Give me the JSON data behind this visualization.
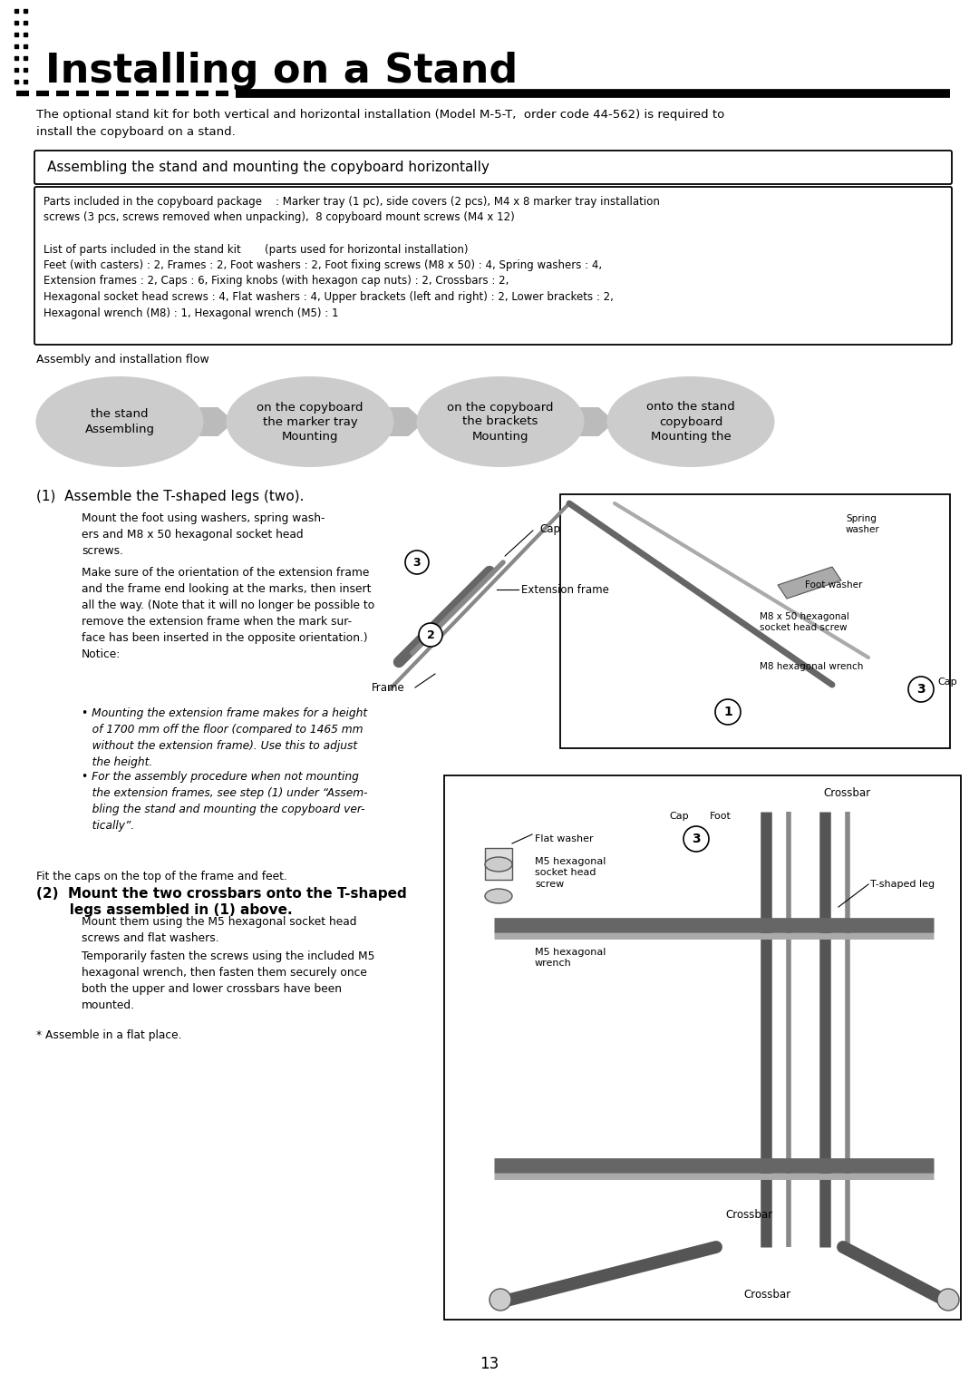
{
  "page_bg": "#ffffff",
  "title": "Installing on a Stand",
  "title_fontsize": 32,
  "title_color": "#000000",
  "body_fontsize": 9.5,
  "small_fontsize": 8.8,
  "intro_text": "The optional stand kit for both vertical and horizontal installation (Model M-5-T,  order code 44-562) is required to\ninstall the copyboard on a stand.",
  "section_title": "Assembling the stand and mounting the copyboard horizontally",
  "parts_line1": "Parts included in the copyboard package    : Marker tray (1 pc), side covers (2 pcs), M4 x 8 marker tray installation",
  "parts_line2": "screws (3 pcs, screws removed when unpacking),  8 copyboard mount screws (M4 x 12)",
  "parts_line3": "List of parts included in the stand kit       (parts used for horizontal installation)",
  "parts_line4": "Feet (with casters) : 2, Frames : 2, Foot washers : 2, Foot fixing screws (M8 x 50) : 4, Spring washers : 4,",
  "parts_line5": "Extension frames : 2, Caps : 6, Fixing knobs (with hexagon cap nuts) : 2, Crossbars : 2,",
  "parts_line6": "Hexagonal socket head screws : 4, Flat washers : 4, Upper brackets (left and right) : 2, Lower brackets : 2,",
  "parts_line7": "Hexagonal wrench (M8) : 1, Hexagonal wrench (M5) : 1",
  "flow_label": "Assembly and installation flow",
  "flow_steps": [
    "Assembling\nthe stand",
    "Mounting\nthe marker tray\non the copyboard",
    "Mounting\nthe brackets\non the copyboard",
    "Mounting the\ncopyboard\nonto the stand"
  ],
  "step1_title": "(1)  Assemble the T-shaped legs (two).",
  "step1_para1": "Mount the foot using washers, spring wash-\ners and M8 x 50 hexagonal socket head\nscrews.",
  "step1_para2": "Make sure of the orientation of the extension frame\nand the frame end looking at the marks, then insert\nall the way. (Note that it will no longer be possible to\nremove the extension frame when the mark sur-\nface has been inserted in the opposite orientation.)\nNotice:",
  "step1_bullet1": "• Mounting the extension frame makes for a height\n   of 1700 mm off the floor (compared to 1465 mm\n   without the extension frame). Use this to adjust\n   the height.",
  "step1_bullet2": "• For the assembly procedure when not mounting\n   the extension frames, see step (1) under “Assem-\n   bling the stand and mounting the copyboard ver-\n   tically”.",
  "step1_footer": "Fit the caps on the top of the frame and feet.",
  "step2_title_line1": "(2)  Mount the two crossbars onto the T-shaped",
  "step2_title_line2": "       legs assembled in (1) above.",
  "step2_para1": "Mount them using the M5 hexagonal socket head\nscrews and flat washers.",
  "step2_para2": "Temporarily fasten the screws using the included M5\nhexagonal wrench, then fasten them securely once\nboth the upper and lower crossbars have been\nmounted.",
  "step2_footer": "* Assemble in a flat place.",
  "page_number": "13",
  "ellipse_color": "#cccccc",
  "arrow_color": "#bbbbbb",
  "border_color": "#000000",
  "diagram_line_color": "#555555",
  "diagram_light_color": "#888888"
}
